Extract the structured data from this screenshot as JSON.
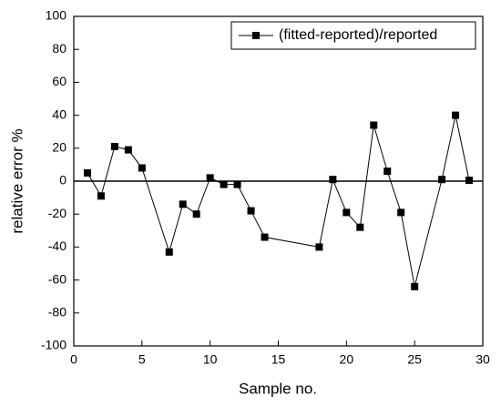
{
  "chart_data": {
    "type": "line",
    "x_label": "Sample no.",
    "y_label": "relative error %",
    "x": [
      1,
      2,
      3,
      4,
      5,
      7,
      8,
      9,
      10,
      11,
      12,
      13,
      14,
      18,
      19,
      20,
      21,
      22,
      23,
      24,
      25,
      27,
      28,
      29
    ],
    "series": [
      {
        "name": "(fitted-reported)/reported",
        "color": "#000000",
        "values": [
          5,
          -9,
          21,
          19,
          8,
          -43,
          -14,
          -20,
          2,
          -2,
          -2,
          -18,
          -34,
          -40,
          1,
          -19,
          -28,
          34,
          6,
          -19,
          -64,
          1,
          40,
          0.5
        ]
      }
    ],
    "xlim": [
      0,
      30
    ],
    "xticks": [
      0,
      5,
      10,
      15,
      20,
      25,
      30
    ],
    "ylim": [
      -100,
      100
    ],
    "yticks": [
      -100,
      -80,
      -60,
      -40,
      -20,
      0,
      20,
      40,
      60,
      80,
      100
    ],
    "reference_line": 0,
    "legend": "upper right",
    "marker": "square"
  }
}
